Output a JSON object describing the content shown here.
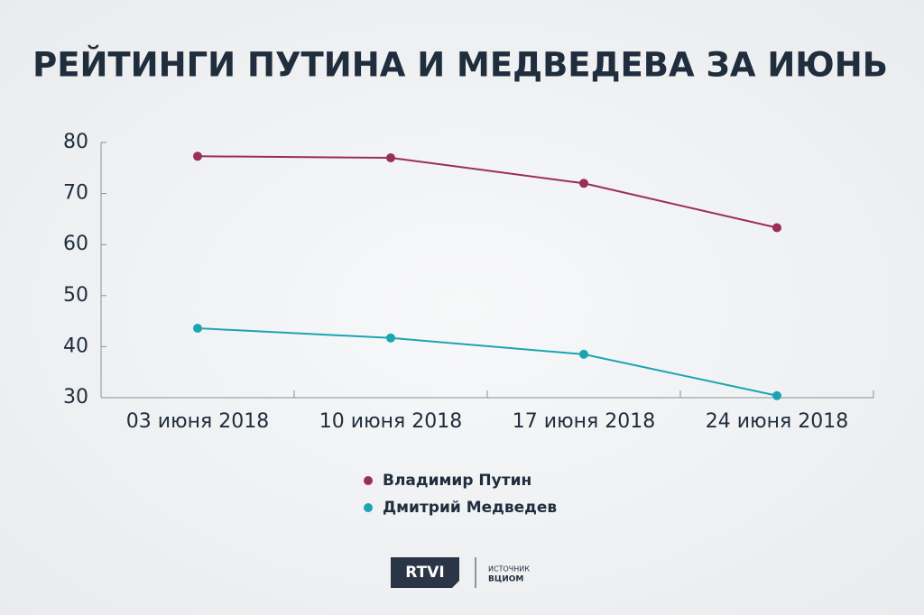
{
  "chart_data": {
    "type": "line",
    "title": "РЕЙТИНГИ ПУТИНА И МЕДВЕДЕВА ЗА ИЮНЬ",
    "categories": [
      "03 июня 2018",
      "10 июня 2018",
      "17 июня 2018",
      "24 июня 2018"
    ],
    "series": [
      {
        "name": "Владимир Путин",
        "color": "#9b2d5a",
        "values": [
          77.3,
          77.0,
          72.0,
          63.3
        ]
      },
      {
        "name": "Дмитрий Медведев",
        "color": "#1aa5b0",
        "values": [
          43.6,
          41.7,
          38.5,
          30.4
        ]
      }
    ],
    "ylim": [
      30,
      80
    ],
    "yticks": [
      30,
      40,
      50,
      60,
      70,
      80
    ],
    "grid": false,
    "logo": "RTVI",
    "source_label": "ИСТОЧНИК",
    "source": "ВЦИОМ"
  }
}
